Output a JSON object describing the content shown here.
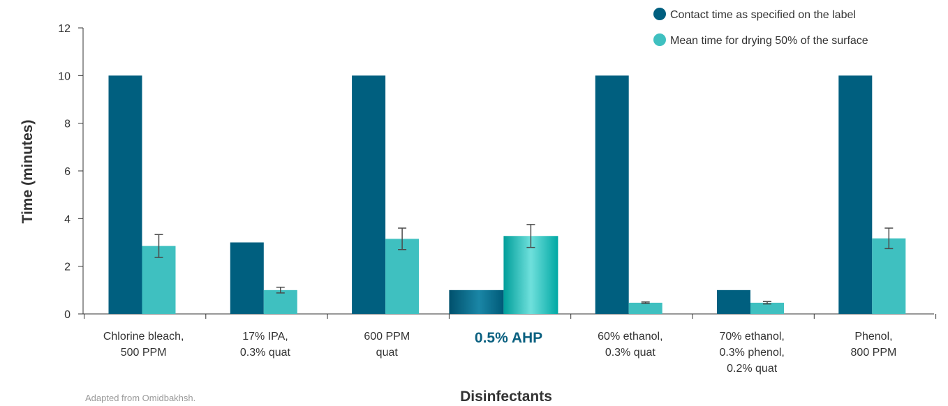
{
  "chart_data": {
    "type": "bar",
    "categories": [
      [
        "Chlorine bleach,",
        "500 PPM"
      ],
      [
        "17% IPA,",
        "0.3% quat"
      ],
      [
        "600 PPM",
        "quat"
      ],
      [
        "0.5% AHP"
      ],
      [
        "60% ethanol,",
        "0.3% quat"
      ],
      [
        "70% ethanol,",
        "0.3% phenol,",
        "0.2% quat"
      ],
      [
        "Phenol,",
        "800 PPM"
      ]
    ],
    "highlight_category_index": 3,
    "series": [
      {
        "name": "Contact time as specified on the label",
        "color": "#005f7f",
        "values": [
          10,
          3,
          10,
          1,
          10,
          1,
          10
        ]
      },
      {
        "name": "Mean time for drying 50% of the surface",
        "color": "#3fc0c0",
        "values": [
          2.85,
          1.0,
          3.15,
          3.27,
          0.47,
          0.47,
          3.17
        ],
        "error": [
          0.48,
          0.12,
          0.45,
          0.48,
          0.03,
          0.05,
          0.43
        ]
      }
    ],
    "xlabel": "Disinfectants",
    "ylabel": "Time (minutes)",
    "ylim": [
      0,
      12
    ],
    "yticks": [
      0,
      2,
      4,
      6,
      8,
      10,
      12
    ],
    "grid": false,
    "legend_position": "top-right"
  },
  "note": "Adapted from Omidbakhsh."
}
